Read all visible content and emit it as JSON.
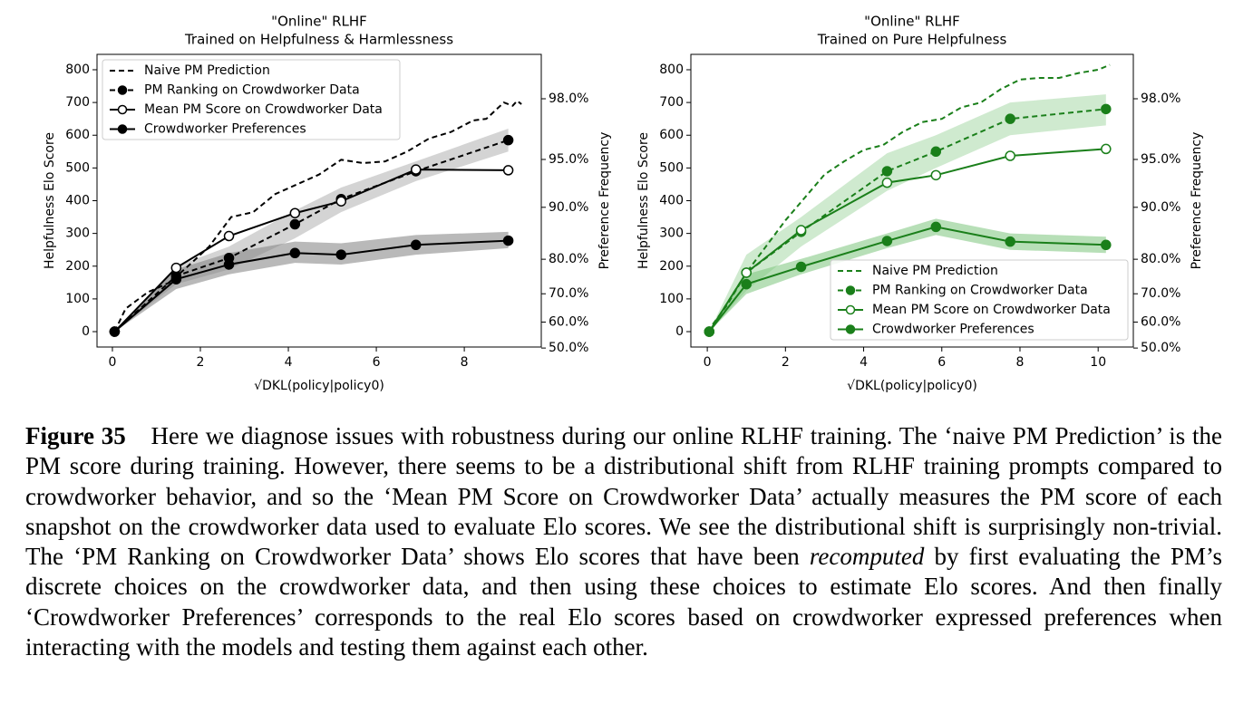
{
  "chart_data": [
    {
      "type": "line",
      "title": "\"Online\" RLHF",
      "subtitle": "Trained on Helpfulness & Harmlessness",
      "xlabel": "√DKL(policy|policy0)",
      "ylabel": "Helpfulness Elo Score",
      "y2label": "Preference Frequency",
      "xlim": [
        -0.35,
        9.75
      ],
      "xticks": [
        0,
        2,
        4,
        6,
        8
      ],
      "ylim": [
        -47,
        847
      ],
      "yticks": [
        0,
        100,
        200,
        300,
        400,
        500,
        600,
        700,
        800
      ],
      "y2scale": "logit",
      "y2lim": [
        50.4,
        98.99
      ],
      "y2ticks": [
        {
          "value": 50,
          "label": "50.0%"
        },
        {
          "value": 60,
          "label": "60.0%"
        },
        {
          "value": 70,
          "label": "70.0%"
        },
        {
          "value": 80,
          "label": "80.0%"
        },
        {
          "value": 90,
          "label": "90.0%"
        },
        {
          "value": 95,
          "label": "95.0%"
        },
        {
          "value": 98,
          "label": "98.0%"
        }
      ],
      "legend": "upper left",
      "series": [
        {
          "name": "Naive PM Prediction",
          "color": "#000000",
          "dash": true,
          "marker": null,
          "x": [
            0.05,
            0.3,
            0.8,
            1.3,
            1.8,
            2.2,
            2.7,
            3.2,
            3.7,
            4.2,
            4.7,
            5.2,
            5.7,
            6.2,
            6.7,
            7.2,
            7.7,
            8.2,
            8.5,
            8.9,
            9.1,
            9.2,
            9.3
          ],
          "values": [
            0,
            70,
            120,
            150,
            210,
            260,
            350,
            365,
            420,
            450,
            480,
            525,
            515,
            520,
            550,
            590,
            610,
            645,
            650,
            700,
            690,
            705,
            695
          ]
        },
        {
          "name": "PM Ranking on Crowdworker Data",
          "color": "#000000",
          "dash": true,
          "marker": "filled",
          "band_color": "#b0b0b0",
          "x": [
            0.05,
            1.45,
            2.65,
            4.15,
            5.2,
            6.9,
            9.0
          ],
          "values": [
            0,
            170,
            225,
            328,
            405,
            490,
            585
          ],
          "lower": [
            0,
            145,
            190,
            285,
            365,
            460,
            550
          ],
          "upper": [
            0,
            200,
            260,
            370,
            440,
            520,
            620
          ]
        },
        {
          "name": "Mean PM Score on Crowdworker Data",
          "color": "#000000",
          "dash": false,
          "marker": "open",
          "x": [
            0.05,
            1.45,
            2.65,
            4.15,
            5.2,
            6.9,
            9.0
          ],
          "values": [
            0,
            195,
            292,
            362,
            398,
            495,
            493
          ]
        },
        {
          "name": "Crowdworker Preferences",
          "color": "#000000",
          "dash": false,
          "marker": "filled",
          "band_color": "#808080",
          "x": [
            0.05,
            1.45,
            2.65,
            4.15,
            5.2,
            6.9,
            9.0
          ],
          "values": [
            0,
            160,
            205,
            240,
            235,
            265,
            278
          ],
          "lower": [
            0,
            130,
            175,
            210,
            205,
            235,
            255
          ],
          "upper": [
            0,
            190,
            240,
            275,
            270,
            295,
            305
          ]
        }
      ]
    },
    {
      "type": "line",
      "title": "\"Online\" RLHF",
      "subtitle": "Trained on Pure Helpfulness",
      "xlabel": "√DKL(policy|policy0)",
      "ylabel": "Helpfulness Elo Score",
      "y2label": "Preference Frequency",
      "xlim": [
        -0.42,
        10.9
      ],
      "xticks": [
        0,
        2,
        4,
        6,
        8,
        10
      ],
      "ylim": [
        -47,
        847
      ],
      "yticks": [
        0,
        100,
        200,
        300,
        400,
        500,
        600,
        700,
        800
      ],
      "y2scale": "logit",
      "y2lim": [
        50.4,
        98.99
      ],
      "y2ticks": [
        {
          "value": 50,
          "label": "50.0%"
        },
        {
          "value": 60,
          "label": "60.0%"
        },
        {
          "value": 70,
          "label": "70.0%"
        },
        {
          "value": 80,
          "label": "80.0%"
        },
        {
          "value": 90,
          "label": "90.0%"
        },
        {
          "value": 95,
          "label": "95.0%"
        },
        {
          "value": 98,
          "label": "98.0%"
        }
      ],
      "legend": "lower right",
      "series": [
        {
          "name": "Naive PM Prediction",
          "color": "#1a7f1a",
          "dash": true,
          "marker": null,
          "x": [
            0,
            0.5,
            1,
            1.5,
            2,
            2.5,
            3,
            3.5,
            4,
            4.5,
            5,
            5.5,
            6,
            6.5,
            7,
            7.5,
            8,
            8.5,
            9,
            9.5,
            10,
            10.3
          ],
          "values": [
            0,
            80,
            180,
            260,
            340,
            410,
            480,
            520,
            555,
            570,
            610,
            640,
            650,
            685,
            700,
            740,
            770,
            775,
            775,
            790,
            800,
            815
          ]
        },
        {
          "name": "PM Ranking on Crowdworker Data",
          "color": "#1a7f1a",
          "dash": true,
          "marker": "filled",
          "band_color": "#a8d8a8",
          "x": [
            0.05,
            1.0,
            2.4,
            4.6,
            5.85,
            7.75,
            10.2
          ],
          "values": [
            0,
            180,
            305,
            490,
            550,
            650,
            680
          ],
          "lower": [
            0,
            125,
            260,
            430,
            500,
            600,
            630
          ],
          "upper": [
            0,
            235,
            350,
            545,
            600,
            700,
            725
          ]
        },
        {
          "name": "Mean PM Score on Crowdworker Data",
          "color": "#1a7f1a",
          "dash": false,
          "marker": "open",
          "x": [
            0.05,
            1.0,
            2.4,
            4.6,
            5.85,
            7.75,
            10.2
          ],
          "values": [
            0,
            180,
            310,
            455,
            478,
            537,
            558
          ]
        },
        {
          "name": "Crowdworker Preferences",
          "color": "#1a7f1a",
          "dash": false,
          "marker": "filled",
          "band_color": "#7cc47c",
          "x": [
            0.05,
            1.0,
            2.4,
            4.6,
            5.85,
            7.75,
            10.2
          ],
          "values": [
            0,
            145,
            198,
            277,
            320,
            275,
            265
          ],
          "lower": [
            0,
            115,
            175,
            255,
            295,
            250,
            240
          ],
          "upper": [
            0,
            175,
            222,
            300,
            345,
            300,
            290
          ]
        }
      ]
    }
  ],
  "caption": {
    "label": "Figure 35",
    "before": "Here we diagnose issues with robustness during our online RLHF training. The ‘naive PM Prediction’ is the PM score during training. However, there seems to be a distributional shift from RLHF training prompts compared to crowdworker behavior, and so the ‘Mean PM Score on Crowdworker Data’ actually measures the PM score of each snapshot on the crowdworker data used to evaluate Elo scores. We see the distributional shift is surprisingly non-trivial. The ‘PM Ranking on Crowdworker Data’ shows Elo scores that have been",
    "emphasis": "recomputed",
    "after": "by first evaluating the PM’s discrete choices on the crowdworker data, and then using these choices to estimate Elo scores. And then finally ‘Crowdworker Preferences’ corresponds to the real Elo scores based on crowdworker expressed preferences when interacting with the models and testing them against each other."
  }
}
